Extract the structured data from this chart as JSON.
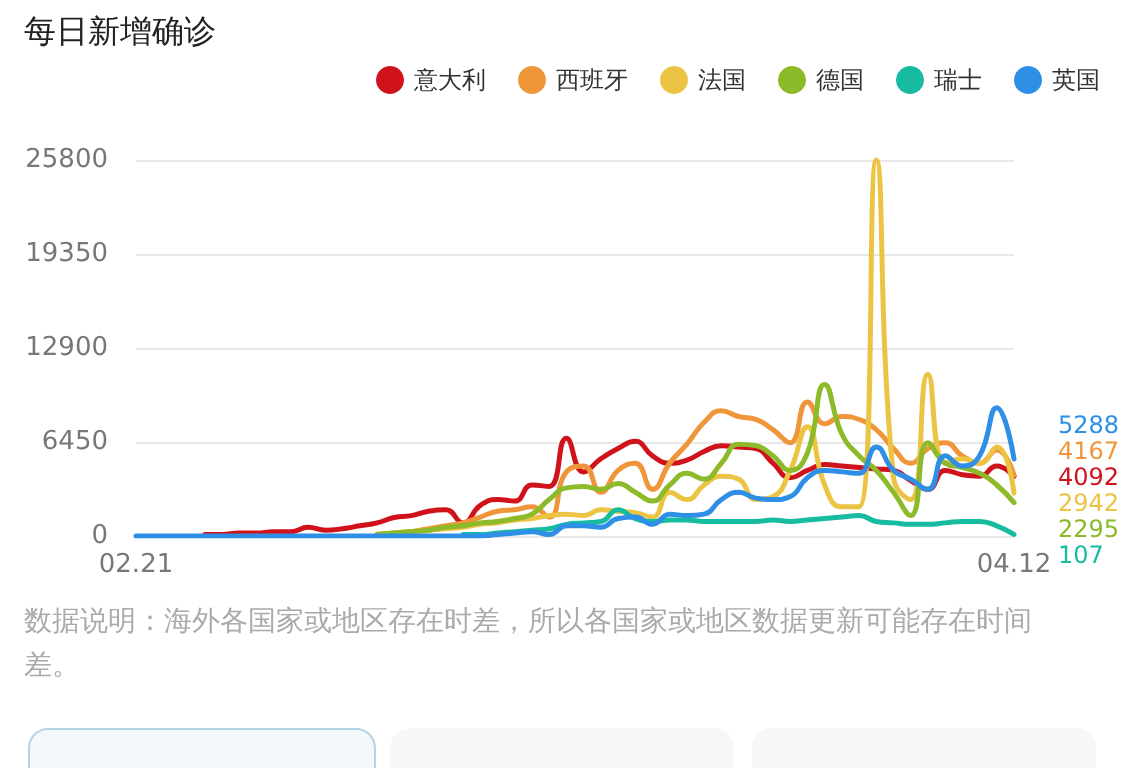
{
  "chart_data": {
    "type": "line",
    "title": "每日新增确诊",
    "annotations": [
      "数据说明：海外各国家或地区存在时差，所以各国家或地区数据更新可能存在时间差。"
    ],
    "categories": [
      "02.21",
      null,
      null,
      null,
      null,
      null,
      null,
      null,
      null,
      null,
      null,
      null,
      null,
      null,
      null,
      null,
      null,
      null,
      null,
      null,
      null,
      null,
      null,
      null,
      null,
      null,
      null,
      null,
      null,
      null,
      null,
      null,
      null,
      null,
      null,
      null,
      null,
      null,
      null,
      null,
      null,
      null,
      null,
      null,
      null,
      null,
      null,
      null,
      null,
      null,
      null,
      "04.12"
    ],
    "ylim": [
      0,
      25800
    ],
    "yticks": [
      0,
      6450,
      12900,
      19350,
      25800
    ],
    "grid": "y",
    "legend": "top right",
    "series": [
      {
        "name": "意大利",
        "color": "#d0121b",
        "values": [
          null,
          null,
          null,
          null,
          100,
          100,
          200,
          200,
          300,
          300,
          600,
          400,
          500,
          700,
          900,
          1270,
          1400,
          1700,
          1800,
          900,
          2100,
          2500,
          2400,
          3500,
          3400,
          6700,
          4400,
          5300,
          6000,
          6500,
          5500,
          5000,
          5200,
          5800,
          6200,
          6100,
          6000,
          5000,
          4000,
          4500,
          4900,
          4800,
          4700,
          4600,
          4500,
          3800,
          3200,
          4500,
          4200,
          4100,
          4800,
          4092
        ],
        "value_labels": [
          null,
          null,
          null,
          null,
          null,
          null,
          null,
          null,
          null,
          null,
          null,
          null,
          null,
          null,
          null,
          null,
          null,
          null,
          null,
          null,
          null,
          null,
          null,
          null,
          null,
          null,
          null,
          null,
          null,
          null,
          null,
          null,
          null,
          null,
          null,
          null,
          null,
          null,
          null,
          null,
          null,
          null,
          null,
          null,
          null,
          null,
          null,
          null,
          null,
          null,
          null,
          "4092"
        ]
      },
      {
        "name": "西班牙",
        "color": "#f0963a",
        "values": [
          null,
          null,
          null,
          null,
          null,
          null,
          null,
          null,
          null,
          null,
          null,
          null,
          null,
          null,
          100,
          200,
          300,
          500,
          700,
          900,
          1300,
          1700,
          1800,
          2000,
          1300,
          4400,
          4800,
          3000,
          4500,
          5000,
          3200,
          5000,
          6300,
          7800,
          8600,
          8200,
          8000,
          7300,
          6400,
          9200,
          7700,
          8200,
          8000,
          7300,
          6000,
          5000,
          6000,
          6400,
          5500,
          5000,
          5900,
          4167
        ],
        "value_labels": [
          null,
          null,
          null,
          null,
          null,
          null,
          null,
          null,
          null,
          null,
          null,
          null,
          null,
          null,
          null,
          null,
          null,
          null,
          null,
          null,
          null,
          null,
          null,
          null,
          null,
          null,
          null,
          null,
          null,
          null,
          null,
          null,
          null,
          null,
          null,
          null,
          null,
          null,
          null,
          null,
          null,
          null,
          null,
          null,
          null,
          null,
          null,
          null,
          null,
          null,
          null,
          "4167"
        ]
      },
      {
        "name": "法国",
        "color": "#ecc443",
        "values": [
          null,
          null,
          null,
          null,
          null,
          null,
          null,
          null,
          null,
          null,
          null,
          null,
          null,
          null,
          100,
          200,
          300,
          400,
          500,
          600,
          800,
          900,
          1100,
          1200,
          1400,
          1500,
          1400,
          1800,
          1700,
          1600,
          1300,
          3000,
          2500,
          3500,
          4100,
          3900,
          2500,
          2700,
          4500,
          7500,
          3500,
          2000,
          2000,
          25800,
          4000,
          2500,
          11100,
          5000,
          5300,
          5000,
          6100,
          2942
        ],
        "value_labels": [
          null,
          null,
          null,
          null,
          null,
          null,
          null,
          null,
          null,
          null,
          null,
          null,
          null,
          null,
          null,
          null,
          null,
          null,
          null,
          null,
          null,
          null,
          null,
          null,
          null,
          null,
          null,
          null,
          null,
          null,
          null,
          null,
          null,
          null,
          null,
          null,
          null,
          null,
          null,
          null,
          null,
          null,
          null,
          null,
          null,
          null,
          null,
          null,
          null,
          null,
          null,
          "2942"
        ]
      },
      {
        "name": "德国",
        "color": "#8cba28",
        "values": [
          null,
          null,
          null,
          null,
          null,
          null,
          null,
          null,
          null,
          null,
          null,
          null,
          null,
          null,
          100,
          200,
          300,
          400,
          600,
          700,
          900,
          1000,
          1200,
          1500,
          2500,
          3300,
          3400,
          3200,
          3600,
          3000,
          2400,
          3500,
          4300,
          3900,
          5000,
          6300,
          6200,
          5500,
          4500,
          5700,
          10400,
          7000,
          5500,
          4500,
          3000,
          1400,
          6400,
          5000,
          4700,
          4300,
          3500,
          2295
        ],
        "value_labels": [
          null,
          null,
          null,
          null,
          null,
          null,
          null,
          null,
          null,
          null,
          null,
          null,
          null,
          null,
          null,
          null,
          null,
          null,
          null,
          null,
          null,
          null,
          null,
          null,
          null,
          null,
          null,
          null,
          null,
          null,
          null,
          null,
          null,
          null,
          null,
          null,
          null,
          null,
          null,
          null,
          null,
          null,
          null,
          null,
          null,
          null,
          null,
          null,
          null,
          null,
          null,
          "2295"
        ]
      },
      {
        "name": "瑞士",
        "color": "#17bba0",
        "values": [
          null,
          null,
          null,
          null,
          null,
          null,
          null,
          null,
          null,
          null,
          null,
          null,
          null,
          null,
          null,
          null,
          null,
          null,
          null,
          100,
          100,
          200,
          300,
          400,
          500,
          800,
          900,
          1000,
          1800,
          1200,
          1000,
          1100,
          1100,
          1000,
          1000,
          1000,
          1000,
          1100,
          1000,
          1100,
          1200,
          1300,
          1400,
          1000,
          900,
          800,
          800,
          900,
          1000,
          1000,
          700,
          107
        ],
        "value_labels": [
          null,
          null,
          null,
          null,
          null,
          null,
          null,
          null,
          null,
          null,
          null,
          null,
          null,
          null,
          null,
          null,
          null,
          null,
          null,
          null,
          null,
          null,
          null,
          null,
          null,
          null,
          null,
          null,
          null,
          null,
          null,
          null,
          null,
          null,
          null,
          null,
          null,
          null,
          null,
          null,
          null,
          null,
          null,
          null,
          null,
          null,
          null,
          null,
          null,
          null,
          null,
          "107"
        ]
      },
      {
        "name": "英国",
        "color": "#2f8fe6",
        "values": [
          0,
          0,
          0,
          0,
          0,
          0,
          0,
          0,
          0,
          0,
          0,
          0,
          0,
          0,
          0,
          0,
          0,
          0,
          0,
          0,
          0,
          100,
          200,
          300,
          100,
          700,
          700,
          600,
          1200,
          1300,
          800,
          1500,
          1400,
          1500,
          2500,
          3000,
          2600,
          2500,
          2700,
          4000,
          4500,
          4400,
          4300,
          6100,
          4500,
          3900,
          3200,
          5500,
          4800,
          5500,
          8800,
          5288
        ],
        "value_labels": [
          null,
          null,
          null,
          null,
          null,
          null,
          null,
          null,
          null,
          null,
          null,
          null,
          null,
          null,
          null,
          null,
          null,
          null,
          null,
          null,
          null,
          null,
          null,
          null,
          null,
          null,
          null,
          null,
          null,
          null,
          null,
          null,
          null,
          null,
          null,
          null,
          null,
          null,
          null,
          null,
          null,
          null,
          null,
          null,
          null,
          null,
          null,
          null,
          null,
          null,
          null,
          "5288"
        ]
      }
    ]
  }
}
